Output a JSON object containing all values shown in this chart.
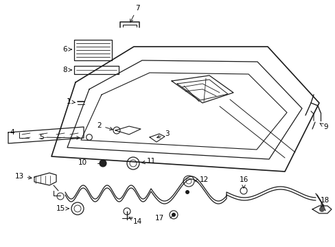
{
  "bg_color": "#ffffff",
  "line_color": "#1a1a1a",
  "label_color": "#000000",
  "figsize": [
    4.89,
    3.6
  ],
  "dpi": 100,
  "fs": 7.5
}
